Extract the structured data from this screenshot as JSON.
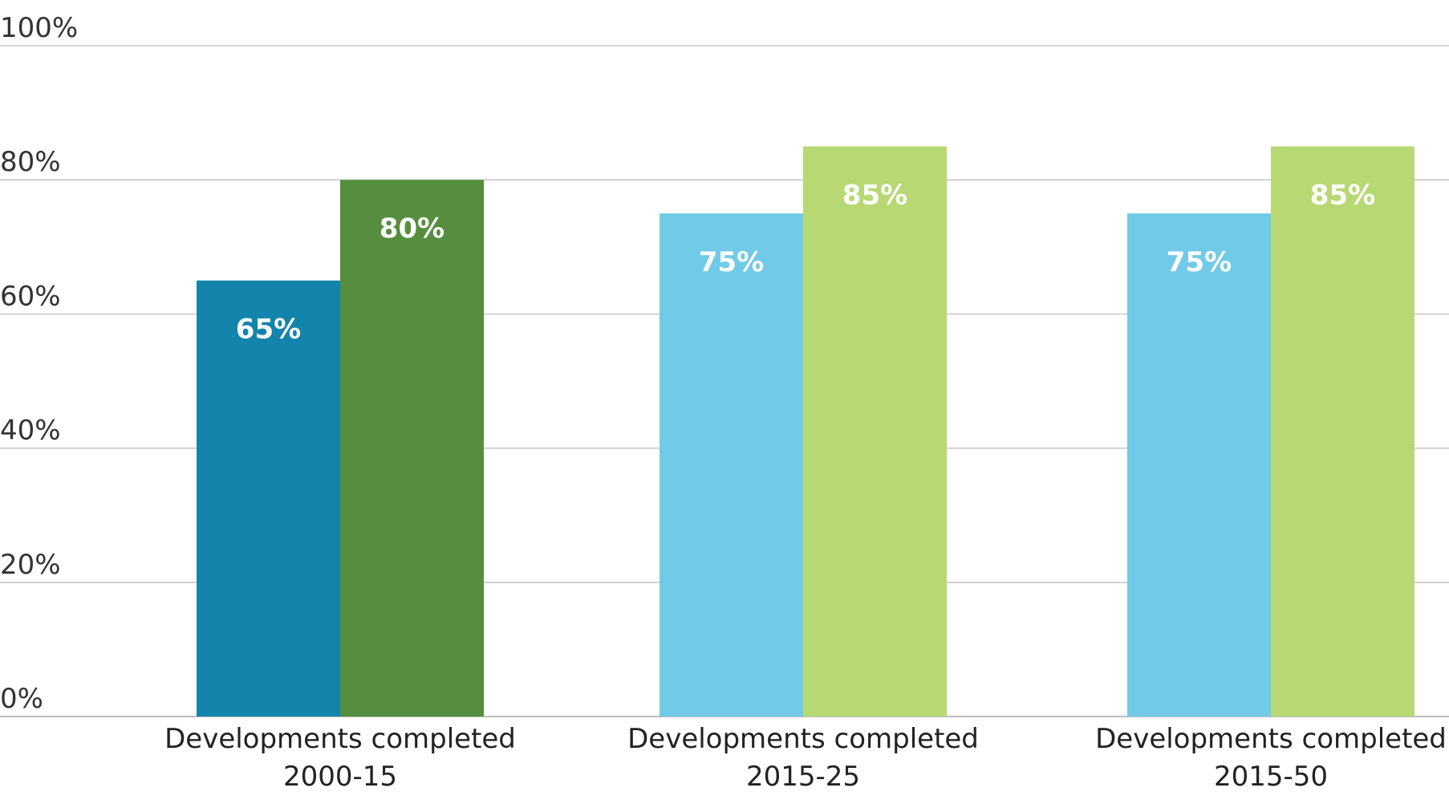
{
  "chart_data": {
    "type": "bar",
    "title": "",
    "xlabel": "",
    "ylabel": "",
    "ylim": [
      0,
      100
    ],
    "y_ticks": [
      0,
      20,
      40,
      60,
      80,
      100
    ],
    "y_tick_labels": [
      "0%",
      "20%",
      "40%",
      "60%",
      "80%",
      "100%"
    ],
    "grid": true,
    "legend": "none",
    "categories": [
      [
        "Developments completed",
        "2000-15"
      ],
      [
        "Developments completed",
        "2015-25"
      ],
      [
        "Developments completed",
        "2015-50"
      ]
    ],
    "groups": [
      {
        "bars": [
          {
            "value": 65,
            "label": "65%",
            "color": "#1384ac"
          },
          {
            "value": 80,
            "label": "80%",
            "color": "#558e3e"
          }
        ]
      },
      {
        "bars": [
          {
            "value": 75,
            "label": "75%",
            "color": "#71cae7"
          },
          {
            "value": 85,
            "label": "85%",
            "color": "#b8d874"
          }
        ]
      },
      {
        "bars": [
          {
            "value": 75,
            "label": "75%",
            "color": "#71cae7"
          },
          {
            "value": 85,
            "label": "85%",
            "color": "#b8d874"
          }
        ]
      }
    ]
  }
}
